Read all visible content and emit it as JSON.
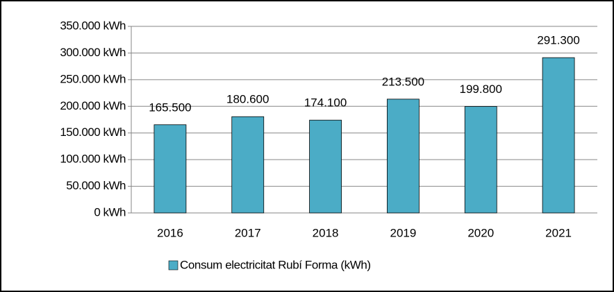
{
  "chart_data": {
    "type": "bar",
    "categories": [
      "2016",
      "2017",
      "2018",
      "2019",
      "2020",
      "2021"
    ],
    "series": [
      {
        "name": "Consum electricitat Rubí Forma (kWh)",
        "color": "#4bacc6",
        "values": [
          165500,
          180600,
          174100,
          213500,
          199800,
          291300
        ],
        "value_labels": [
          "165.500",
          "180.600",
          "174.100",
          "213.500",
          "199.800",
          "291.300"
        ]
      }
    ],
    "ylim": [
      0,
      350000
    ],
    "yticks": [
      {
        "value": 0,
        "label": "0 kWh"
      },
      {
        "value": 50000,
        "label": "50.000 kWh"
      },
      {
        "value": 100000,
        "label": "100.000 kWh"
      },
      {
        "value": 150000,
        "label": "150.000 kWh"
      },
      {
        "value": 200000,
        "label": "200.000 kWh"
      },
      {
        "value": 250000,
        "label": "250.000 kWh"
      },
      {
        "value": 300000,
        "label": "300.000 kWh"
      },
      {
        "value": 350000,
        "label": "350.000 kWh"
      }
    ],
    "grid": true,
    "legend": "bottom"
  }
}
